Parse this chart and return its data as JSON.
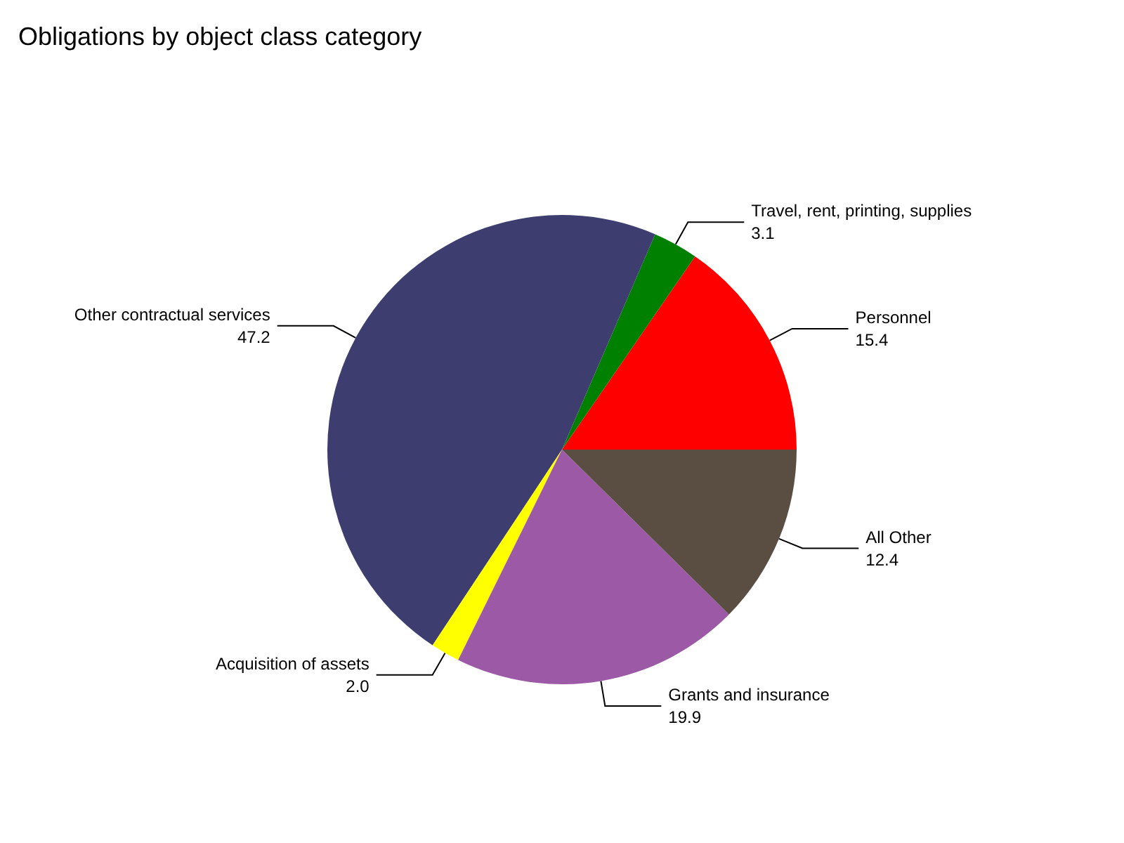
{
  "chart_data": {
    "type": "pie",
    "title": "Obligations by object class category",
    "categories": [
      "Personnel",
      "Travel, rent, printing, supplies",
      "Other contractual services",
      "Acquisition of assets",
      "Grants and insurance",
      "All Other"
    ],
    "values": [
      15.4,
      3.1,
      47.2,
      2.0,
      19.9,
      12.4
    ],
    "value_labels": [
      "15.4",
      "3.1",
      "47.2",
      "2.0",
      "19.9",
      "12.4"
    ],
    "colors": [
      "#ff0000",
      "#008000",
      "#3d3d70",
      "#ffff00",
      "#9b59a6",
      "#5a4e42"
    ],
    "legend": false
  }
}
